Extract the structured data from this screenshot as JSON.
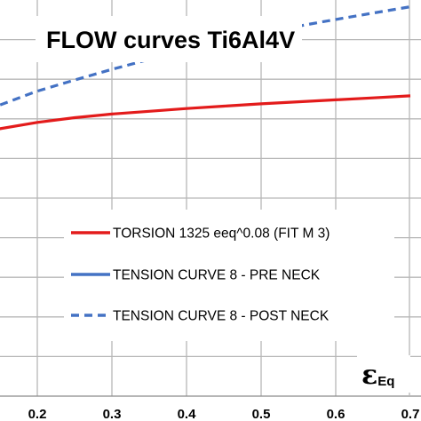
{
  "chart_data": {
    "type": "line",
    "title": "FLOW curves Ti6Al4V",
    "xlabel": {
      "symbol": "ε",
      "subscript": "Eq"
    },
    "ylabel": "",
    "xlim": [
      0.1,
      0.7
    ],
    "x_ticks": [
      0.2,
      0.3,
      0.4,
      0.5,
      0.6,
      0.7
    ],
    "x_tick_labels": [
      "0.2",
      "0.3",
      "0.4",
      "0.5",
      "0.6",
      "0.7"
    ],
    "ylim": [
      0,
      10
    ],
    "y_gridlines": [
      1,
      2,
      3,
      4,
      5,
      6,
      7,
      8,
      9
    ],
    "grid": true,
    "legend_placement": "bottom-right",
    "series": [
      {
        "name": "TORSION 1325 eeq^0.08 (FIT M 3)",
        "color": "#e31b1b",
        "dash": "solid",
        "x": [
          0.1,
          0.15,
          0.2,
          0.25,
          0.3,
          0.35,
          0.4,
          0.45,
          0.5,
          0.55,
          0.6,
          0.65,
          0.7
        ],
        "y": [
          6.53,
          6.75,
          6.91,
          7.03,
          7.12,
          7.19,
          7.26,
          7.32,
          7.38,
          7.43,
          7.48,
          7.53,
          7.58
        ]
      },
      {
        "name": "TENSION CURVE  8 - PRE NECK",
        "color": "#4472c4",
        "dash": "solid",
        "x": [],
        "y": []
      },
      {
        "name": "TENSION CURVE 8 - POST NECK",
        "color": "#4472c4",
        "dash": "dashed",
        "x": [
          0.1,
          0.15,
          0.2,
          0.25,
          0.3,
          0.35,
          0.4,
          0.45,
          0.5,
          0.55,
          0.6,
          0.65,
          0.7
        ],
        "y": [
          7.0,
          7.35,
          7.7,
          7.98,
          8.25,
          8.5,
          8.73,
          8.95,
          9.16,
          9.34,
          9.51,
          9.67,
          9.83
        ]
      }
    ]
  }
}
